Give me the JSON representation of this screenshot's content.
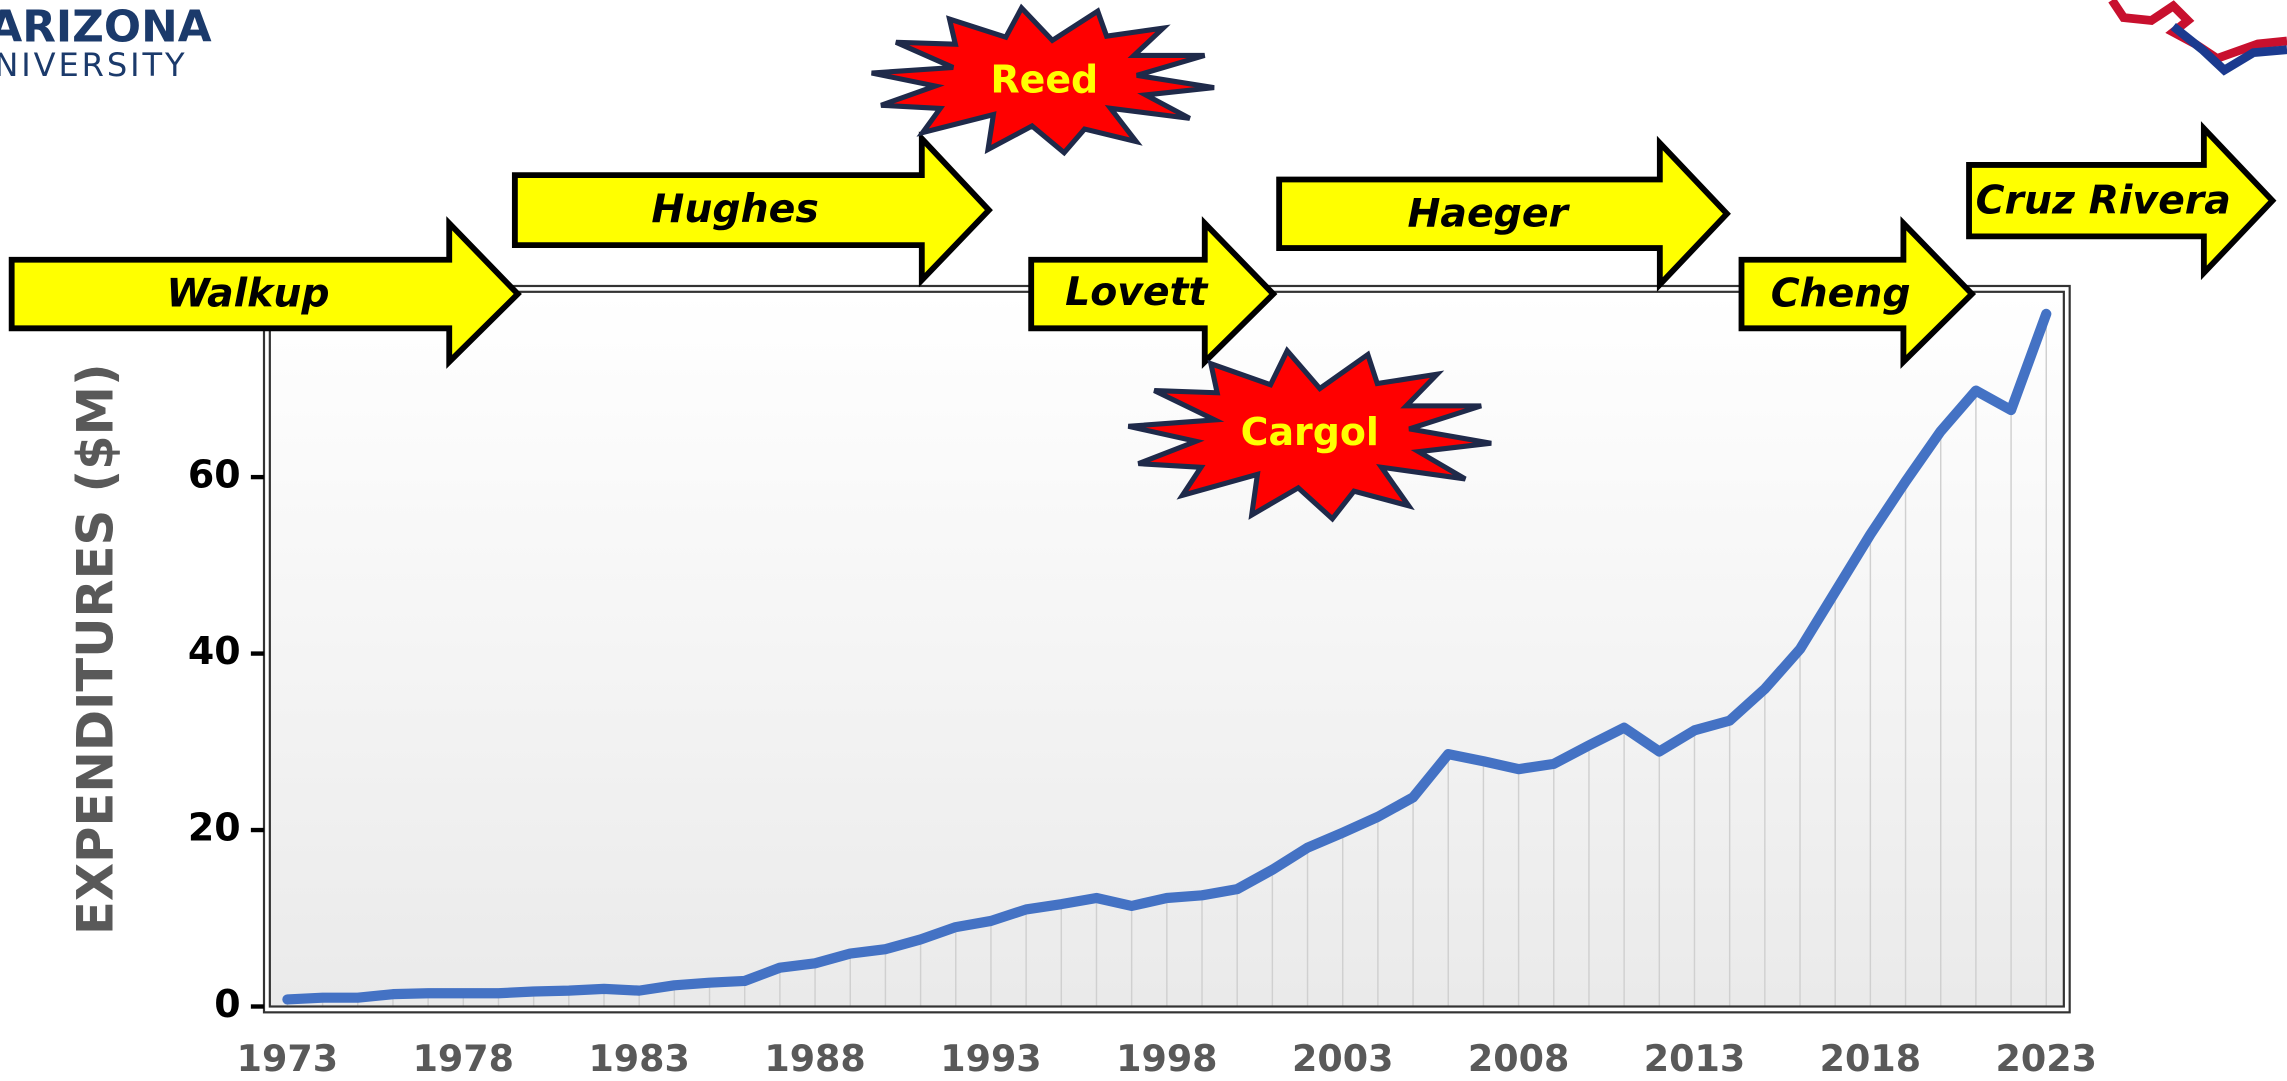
{
  "logo": {
    "line1": "ARIZONA",
    "line2": "UNIVERSITY"
  },
  "chart_data": {
    "type": "line",
    "y_label": "EXPENDITURES ($M)",
    "x": [
      1973,
      1974,
      1975,
      1976,
      1977,
      1978,
      1979,
      1980,
      1981,
      1982,
      1983,
      1984,
      1985,
      1986,
      1987,
      1988,
      1989,
      1990,
      1991,
      1992,
      1993,
      1994,
      1995,
      1996,
      1997,
      1998,
      1999,
      2000,
      2001,
      2002,
      2003,
      2004,
      2005,
      2006,
      2007,
      2008,
      2009,
      2010,
      2011,
      2012,
      2013,
      2014,
      2015,
      2016,
      2017,
      2018,
      2019,
      2020,
      2021,
      2022,
      2023
    ],
    "values": [
      0.8,
      1.0,
      1.0,
      1.4,
      1.5,
      1.5,
      1.5,
      1.7,
      1.8,
      2.0,
      1.8,
      2.4,
      2.7,
      2.9,
      4.4,
      4.9,
      6.0,
      6.5,
      7.6,
      9.0,
      9.7,
      11.0,
      11.6,
      12.3,
      11.4,
      12.3,
      12.6,
      13.3,
      15.5,
      18.0,
      19.7,
      21.5,
      23.7,
      28.6,
      27.8,
      26.9,
      27.5,
      29.6,
      31.6,
      28.9,
      31.3,
      32.4,
      36.0,
      40.5,
      47.0,
      53.5,
      59.5,
      65.2,
      69.8,
      67.6,
      78.5
    ],
    "color": "#4472c4",
    "xlim": [
      1972.5,
      2023.5
    ],
    "xticks": [
      1973,
      1978,
      1983,
      1988,
      1993,
      1998,
      2003,
      2008,
      2013,
      2018,
      2023
    ],
    "ylim": [
      0,
      81
    ],
    "yticks": [
      0,
      20,
      40,
      60
    ],
    "annotations": [
      {
        "text": "Walkup"
      },
      {
        "text": "Hughes"
      },
      {
        "text": "Reed"
      },
      {
        "text": "Lovett"
      },
      {
        "text": "Cargol"
      },
      {
        "text": "Haeger"
      },
      {
        "text": "Cheng"
      },
      {
        "text": "Cruz Rivera"
      }
    ]
  }
}
